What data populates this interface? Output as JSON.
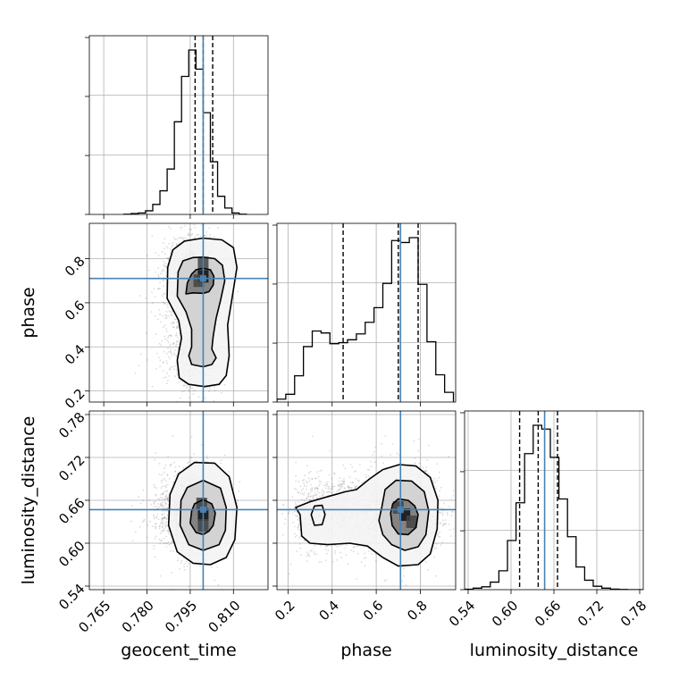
{
  "chart_data": {
    "type": "corner",
    "parameters": [
      "geocent_time",
      "phase",
      "luminosity_distance"
    ],
    "truths": {
      "geocent_time": 0.7995,
      "phase": 0.71,
      "luminosity_distance": 0.647
    },
    "ranges": {
      "geocent_time": [
        0.76,
        0.822
      ],
      "phase": [
        0.15,
        0.96
      ],
      "luminosity_distance": [
        0.535,
        0.785
      ]
    },
    "ticks": {
      "geocent_time": [
        0.765,
        0.78,
        0.795,
        0.81
      ],
      "phase": [
        0.2,
        0.4,
        0.6,
        0.8
      ],
      "luminosity_distance": [
        0.54,
        0.6,
        0.66,
        0.72,
        0.78
      ]
    },
    "tick_labels": {
      "geocent_time": [
        "0.765",
        "0.780",
        "0.795",
        "0.810"
      ],
      "phase": [
        "0.2",
        "0.4",
        "0.6",
        "0.8"
      ],
      "luminosity_distance": [
        "0.54",
        "0.60",
        "0.66",
        "0.72",
        "0.78"
      ]
    },
    "xlabels": {
      "geocent_time": "geocent_time",
      "phase": "phase",
      "luminosity_distance": "luminosity_distance"
    },
    "ylabels": {
      "phase": "phase",
      "luminosity_distance": "luminosity_distance"
    },
    "quantiles": {
      "geocent_time": [
        0.7967,
        0.7995,
        0.8028
      ],
      "phase": [
        0.45,
        0.7,
        0.79
      ],
      "luminosity_distance": [
        0.612,
        0.638,
        0.665
      ]
    },
    "histograms": {
      "geocent_time": {
        "edges": [
          0.772,
          0.7745,
          0.777,
          0.7795,
          0.782,
          0.7845,
          0.787,
          0.7895,
          0.792,
          0.7945,
          0.797,
          0.7995,
          0.802,
          0.8045,
          0.807,
          0.8095,
          0.812,
          0.8145
        ],
        "counts": [
          1,
          5,
          8,
          20,
          55,
          130,
          250,
          510,
          760,
          905,
          800,
          560,
          290,
          100,
          35,
          8,
          1
        ]
      },
      "phase": {
        "edges": [
          0.15,
          0.19,
          0.23,
          0.27,
          0.31,
          0.35,
          0.39,
          0.43,
          0.47,
          0.51,
          0.55,
          0.59,
          0.63,
          0.67,
          0.71,
          0.75,
          0.79,
          0.83,
          0.87,
          0.91,
          0.95
        ],
        "counts": [
          3,
          8,
          27,
          57,
          73,
          71,
          60,
          61,
          64,
          70,
          82,
          97,
          122,
          166,
          164,
          169,
          121,
          62,
          28,
          10
        ]
      },
      "luminosity_distance": {
        "edges": [
          0.535,
          0.547,
          0.559,
          0.571,
          0.583,
          0.595,
          0.607,
          0.619,
          0.631,
          0.643,
          0.655,
          0.667,
          0.679,
          0.691,
          0.703,
          0.715,
          0.727,
          0.739,
          0.751,
          0.763,
          0.775,
          0.785
        ],
        "counts": [
          2,
          8,
          15,
          40,
          100,
          260,
          460,
          720,
          870,
          850,
          700,
          480,
          280,
          120,
          50,
          18,
          8,
          3,
          1,
          0,
          0
        ]
      }
    },
    "contours_2d": {
      "phase_vs_geocent_time": [
        [
          [
            0.7935,
            0.64
          ],
          [
            0.794,
            0.69
          ],
          [
            0.7955,
            0.73
          ],
          [
            0.797,
            0.75
          ],
          [
            0.7995,
            0.756
          ],
          [
            0.802,
            0.75
          ],
          [
            0.8032,
            0.72
          ],
          [
            0.803,
            0.68
          ],
          [
            0.8015,
            0.65
          ],
          [
            0.7995,
            0.643
          ],
          [
            0.796,
            0.645
          ]
        ],
        [
          [
            0.7905,
            0.63
          ],
          [
            0.7908,
            0.74
          ],
          [
            0.7925,
            0.79
          ],
          [
            0.796,
            0.805
          ],
          [
            0.7995,
            0.807
          ],
          [
            0.8035,
            0.8
          ],
          [
            0.8062,
            0.77
          ],
          [
            0.807,
            0.7
          ],
          [
            0.8055,
            0.61
          ],
          [
            0.804,
            0.53
          ],
          [
            0.803,
            0.45
          ],
          [
            0.8025,
            0.39
          ],
          [
            0.804,
            0.35
          ],
          [
            0.8025,
            0.32
          ],
          [
            0.7995,
            0.31
          ],
          [
            0.7955,
            0.32
          ],
          [
            0.7945,
            0.36
          ],
          [
            0.7955,
            0.4
          ],
          [
            0.7955,
            0.48
          ],
          [
            0.7935,
            0.56
          ]
        ],
        [
          [
            0.787,
            0.62
          ],
          [
            0.7872,
            0.76
          ],
          [
            0.789,
            0.84
          ],
          [
            0.793,
            0.88
          ],
          [
            0.7995,
            0.893
          ],
          [
            0.806,
            0.885
          ],
          [
            0.81,
            0.85
          ],
          [
            0.8112,
            0.76
          ],
          [
            0.8095,
            0.62
          ],
          [
            0.808,
            0.5
          ],
          [
            0.8085,
            0.36
          ],
          [
            0.8075,
            0.27
          ],
          [
            0.805,
            0.23
          ],
          [
            0.8,
            0.22
          ],
          [
            0.7945,
            0.23
          ],
          [
            0.7912,
            0.26
          ],
          [
            0.7905,
            0.34
          ],
          [
            0.792,
            0.44
          ],
          [
            0.791,
            0.52
          ]
        ]
      ],
      "luminosity_distance_vs_geocent_time": [
        [
          [
            0.795,
            0.628
          ],
          [
            0.7955,
            0.645
          ],
          [
            0.7965,
            0.655
          ],
          [
            0.7995,
            0.661
          ],
          [
            0.8025,
            0.655
          ],
          [
            0.8037,
            0.642
          ],
          [
            0.803,
            0.625
          ],
          [
            0.8015,
            0.617
          ],
          [
            0.7995,
            0.612
          ],
          [
            0.797,
            0.615
          ]
        ],
        [
          [
            0.7915,
            0.625
          ],
          [
            0.7918,
            0.66
          ],
          [
            0.794,
            0.678
          ],
          [
            0.7995,
            0.688
          ],
          [
            0.8055,
            0.677
          ],
          [
            0.8075,
            0.65
          ],
          [
            0.8072,
            0.618
          ],
          [
            0.805,
            0.598
          ],
          [
            0.7995,
            0.59
          ],
          [
            0.7945,
            0.598
          ]
        ],
        [
          [
            0.7875,
            0.625
          ],
          [
            0.788,
            0.668
          ],
          [
            0.791,
            0.697
          ],
          [
            0.7965,
            0.713
          ],
          [
            0.8035,
            0.712
          ],
          [
            0.8085,
            0.693
          ],
          [
            0.8112,
            0.65
          ],
          [
            0.8105,
            0.605
          ],
          [
            0.8075,
            0.58
          ],
          [
            0.802,
            0.57
          ],
          [
            0.796,
            0.572
          ],
          [
            0.7905,
            0.588
          ]
        ]
      ],
      "luminosity_distance_vs_phase": [
        [
          [
            0.675,
            0.655
          ],
          [
            0.7,
            0.662
          ],
          [
            0.745,
            0.66
          ],
          [
            0.775,
            0.652
          ],
          [
            0.79,
            0.64
          ],
          [
            0.78,
            0.622
          ],
          [
            0.745,
            0.612
          ],
          [
            0.7,
            0.613
          ],
          [
            0.672,
            0.625
          ],
          [
            0.665,
            0.642
          ]
        ],
        [
          [
            0.625,
            0.65
          ],
          [
            0.64,
            0.675
          ],
          [
            0.69,
            0.688
          ],
          [
            0.76,
            0.687
          ],
          [
            0.818,
            0.672
          ],
          [
            0.838,
            0.645
          ],
          [
            0.825,
            0.612
          ],
          [
            0.79,
            0.595
          ],
          [
            0.73,
            0.59
          ],
          [
            0.67,
            0.598
          ],
          [
            0.63,
            0.612
          ],
          [
            0.612,
            0.632
          ]
        ],
        [
          [
            0.235,
            0.65
          ],
          [
            0.3,
            0.658
          ],
          [
            0.39,
            0.666
          ],
          [
            0.46,
            0.672
          ],
          [
            0.51,
            0.675
          ],
          [
            0.57,
            0.69
          ],
          [
            0.63,
            0.703
          ],
          [
            0.705,
            0.71
          ],
          [
            0.78,
            0.708
          ],
          [
            0.845,
            0.692
          ],
          [
            0.88,
            0.66
          ],
          [
            0.876,
            0.62
          ],
          [
            0.845,
            0.585
          ],
          [
            0.79,
            0.57
          ],
          [
            0.7,
            0.568
          ],
          [
            0.63,
            0.58
          ],
          [
            0.56,
            0.596
          ],
          [
            0.48,
            0.6
          ],
          [
            0.38,
            0.598
          ],
          [
            0.3,
            0.6
          ],
          [
            0.262,
            0.61
          ],
          [
            0.255,
            0.64
          ]
        ],
        [
          [
            0.305,
            0.64
          ],
          [
            0.32,
            0.652
          ],
          [
            0.355,
            0.653
          ],
          [
            0.368,
            0.64
          ],
          [
            0.355,
            0.626
          ],
          [
            0.32,
            0.625
          ]
        ]
      ]
    },
    "density_cores": {
      "phase_vs_geocent_time": [
        [
          0.7995,
          0.72
        ],
        [
          0.7995,
          0.78
        ],
        [
          0.798,
          0.7
        ]
      ],
      "luminosity_distance_vs_geocent_time": [
        [
          0.7995,
          0.64
        ],
        [
          0.7995,
          0.625
        ],
        [
          0.799,
          0.655
        ]
      ],
      "luminosity_distance_vs_phase": [
        [
          0.73,
          0.64
        ],
        [
          0.76,
          0.63
        ],
        [
          0.7,
          0.65
        ]
      ]
    },
    "grid": true,
    "colors": {
      "line": "#000000",
      "truth": "#4682b4",
      "grid": "#b0b0b0",
      "axes": "#000000",
      "scatter": "#000000"
    }
  }
}
